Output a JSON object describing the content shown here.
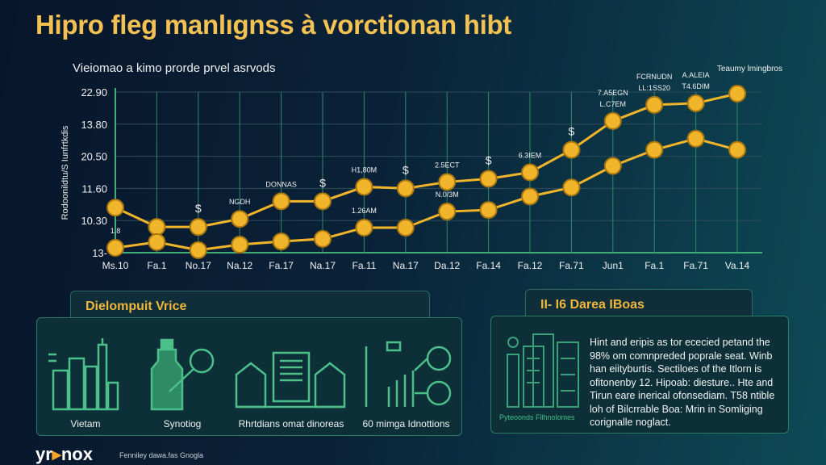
{
  "title": "Hipro fleg manlıgnss à vorctionan hibt",
  "chart_data": {
    "type": "line",
    "title": "Vieiomao a kimo prorde prvel asrvods",
    "ylabel": "Rodoonildtu/S Iunfrtkdis",
    "ytick_labels": [
      "13-",
      "10.30",
      "11.60",
      "20.50",
      "13.80",
      "22.90"
    ],
    "ylim": [
      0,
      5
    ],
    "grid": true,
    "categories": [
      "Ms.10",
      "Fa.1",
      "No.17",
      "Na.12",
      "Fa.17",
      "Na.17",
      "Fa.11",
      "Na.17",
      "Da.12",
      "Fa.14",
      "Fa.12",
      "Fa.71",
      "Jun1",
      "Fa.1",
      "Fa.71",
      "Va.14"
    ],
    "series": [
      {
        "values": [
          1.4,
          0.8,
          0.8,
          1.05,
          1.6,
          1.6,
          2.05,
          2.0,
          2.2,
          2.3,
          2.5,
          3.2,
          4.1,
          4.6,
          4.65,
          4.95
        ],
        "color": "#f0b52a"
      },
      {
        "values": [
          0.15,
          0.33,
          0.08,
          0.25,
          0.35,
          0.43,
          0.78,
          0.78,
          1.28,
          1.33,
          1.75,
          2.03,
          2.7,
          3.2,
          3.55,
          3.2
        ],
        "color": "#f0b52a"
      }
    ],
    "annotations": [
      {
        "text": "1.8",
        "index": 0,
        "series": 1
      },
      {
        "text": "$",
        "index": 2,
        "series": 0
      },
      {
        "text": "NGDH",
        "index": 3,
        "series": 0
      },
      {
        "text": "DONNAS",
        "index": 4,
        "series": 0
      },
      {
        "text": "$",
        "index": 5,
        "series": 0
      },
      {
        "text": "H1,80M",
        "index": 6,
        "series": 0
      },
      {
        "text": "1.26AM",
        "index": 6,
        "series": 1
      },
      {
        "text": "$",
        "index": 7,
        "series": 0
      },
      {
        "text": "2.5ECT",
        "index": 8,
        "series": 0
      },
      {
        "text": "N.0/3M",
        "index": 8,
        "series": 1
      },
      {
        "text": "$",
        "index": 9,
        "series": 0
      },
      {
        "text": "6.3IEM",
        "index": 10,
        "series": 0
      },
      {
        "text": "$",
        "index": 11,
        "series": 0
      },
      {
        "text": "L.C7EM",
        "index": 12,
        "series": 0
      },
      {
        "text": "7.A5EGN",
        "index": 12,
        "series": 0
      },
      {
        "text": "LL:1SS20",
        "index": 13,
        "series": 0
      },
      {
        "text": "FCRNUDN",
        "index": 13,
        "series": 0
      },
      {
        "text": "T4.6DIM",
        "index": 14,
        "series": 0
      },
      {
        "text": "A.ALEIA",
        "index": 14,
        "series": 0
      }
    ],
    "corner_label": "Teaumy lmingbros"
  },
  "panels": {
    "left": {
      "title": "Dielompuit Vrice",
      "items": [
        {
          "label": "Vietam",
          "icon": "city-skyline-icon"
        },
        {
          "label": "Synotiog",
          "icon": "bottle-magnifier-icon"
        },
        {
          "label": "Rhrtdians omat dinoreas",
          "icon": "houses-icon"
        },
        {
          "label": "60 mimga Idnottions",
          "icon": "bar-growth-icon"
        }
      ]
    },
    "right": {
      "title": "II- I6 Darea IBoas",
      "caption": "Pyteoonds Fllhnolomes",
      "text": "Hint and eripis as tor ececied petand the 98% om comnpreded poprale seat. Winb han eiityburtis. Sectiloes of the Itlorn is ofitonenby 12. Hipoab: diesture.. Hte and Tirun eare inerical ofonsediam. T58 ntible loh of Bilcrrable Boa: Mrin in Somliging corignalle noglact.",
      "icon": "buildings-icon"
    }
  },
  "footer": {
    "logo_a": "yr",
    "logo_b": "nox",
    "text": "Fenniley dawa.fas Gnogla"
  }
}
